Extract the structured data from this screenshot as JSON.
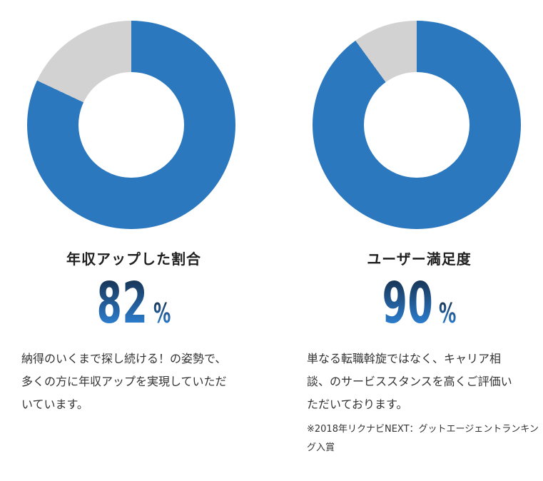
{
  "page": {
    "background": "#ffffff"
  },
  "colors": {
    "donut_fill": "#2b78be",
    "donut_remainder": "#d2d2d2",
    "title_text": "#1f1f1f",
    "body_text": "#333333",
    "number_gradient_top": "#17314f",
    "number_gradient_bottom": "#2e86dd"
  },
  "chart_data": [
    {
      "type": "pie",
      "variant": "donut",
      "title": "年収アップした割合",
      "value": 82,
      "value_text": "82",
      "unit": "%",
      "start_angle_deg": 0,
      "direction": "clockwise",
      "inner_radius_ratio": 0.5,
      "legend": "none",
      "slices": [
        {
          "name": "filled",
          "value": 82,
          "color": "#2b78be"
        },
        {
          "name": "remainder",
          "value": 18,
          "color": "#d2d2d2"
        }
      ],
      "description": "納得のいくまで探し続ける！の姿勢で、\n多くの方に年収アップを実現していただ\nいています。"
    },
    {
      "type": "pie",
      "variant": "donut",
      "title": "ユーザー満足度",
      "value": 90,
      "value_text": "90",
      "unit": "%",
      "start_angle_deg": 0,
      "direction": "clockwise",
      "inner_radius_ratio": 0.5,
      "legend": "none",
      "slices": [
        {
          "name": "filled",
          "value": 90,
          "color": "#2b78be"
        },
        {
          "name": "remainder",
          "value": 10,
          "color": "#d2d2d2"
        }
      ],
      "description": "単なる転職斡旋ではなく、キャリア相\n談、のサービススタンスを高くご評価い\nただいております。",
      "footnote": "※2018年リクナビNEXT：グットエージェントランキン\nグ入賞"
    }
  ]
}
